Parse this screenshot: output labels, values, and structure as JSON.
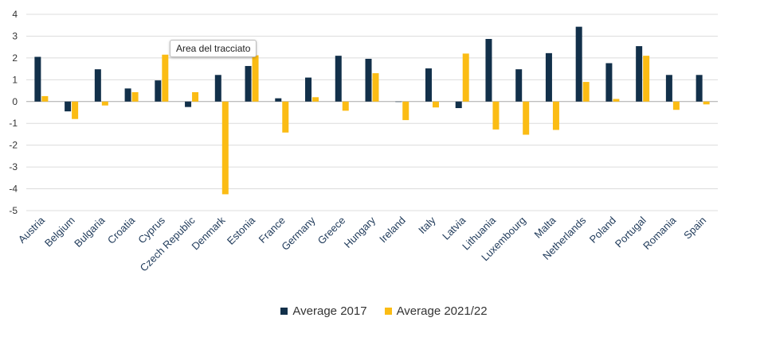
{
  "chart_data": {
    "type": "bar",
    "categories": [
      "Austria",
      "Belgium",
      "Bulgaria",
      "Croatia",
      "Cyprus",
      "Czech Republic",
      "Denmark",
      "Estonia",
      "France",
      "Germany",
      "Greece",
      "Hungary",
      "Ireland",
      "Italy",
      "Latvia",
      "Lithuania",
      "Luxembourg",
      "Malta",
      "Netherlands",
      "Poland",
      "Portugal",
      "Romania",
      "Spain"
    ],
    "series": [
      {
        "name": "Average 2017",
        "color": "#12304a",
        "values": [
          2.05,
          -0.45,
          1.48,
          0.6,
          0.97,
          -0.25,
          1.22,
          1.63,
          0.15,
          1.1,
          2.1,
          1.96,
          0.0,
          1.52,
          -0.3,
          2.87,
          1.48,
          2.22,
          3.43,
          1.76,
          2.54,
          1.22,
          1.22
        ]
      },
      {
        "name": "Average 2021/22",
        "color": "#fbbc14",
        "values": [
          0.25,
          -0.8,
          -0.18,
          0.43,
          2.15,
          0.43,
          -4.25,
          2.12,
          -1.42,
          0.2,
          -0.42,
          1.3,
          -0.85,
          -0.27,
          2.2,
          -1.28,
          -1.52,
          -1.3,
          0.9,
          0.12,
          2.1,
          -0.38,
          -0.13
        ]
      }
    ],
    "yticks": [
      "4",
      "3",
      "2",
      "1",
      "0",
      "-1",
      "-2",
      "-3",
      "-4",
      "-5"
    ],
    "ylim": [
      -5,
      4
    ],
    "grid": true,
    "legend_position": "bottom",
    "title": "",
    "xlabel": "",
    "ylabel": ""
  },
  "tooltip": {
    "text": "Area del tracciato"
  }
}
